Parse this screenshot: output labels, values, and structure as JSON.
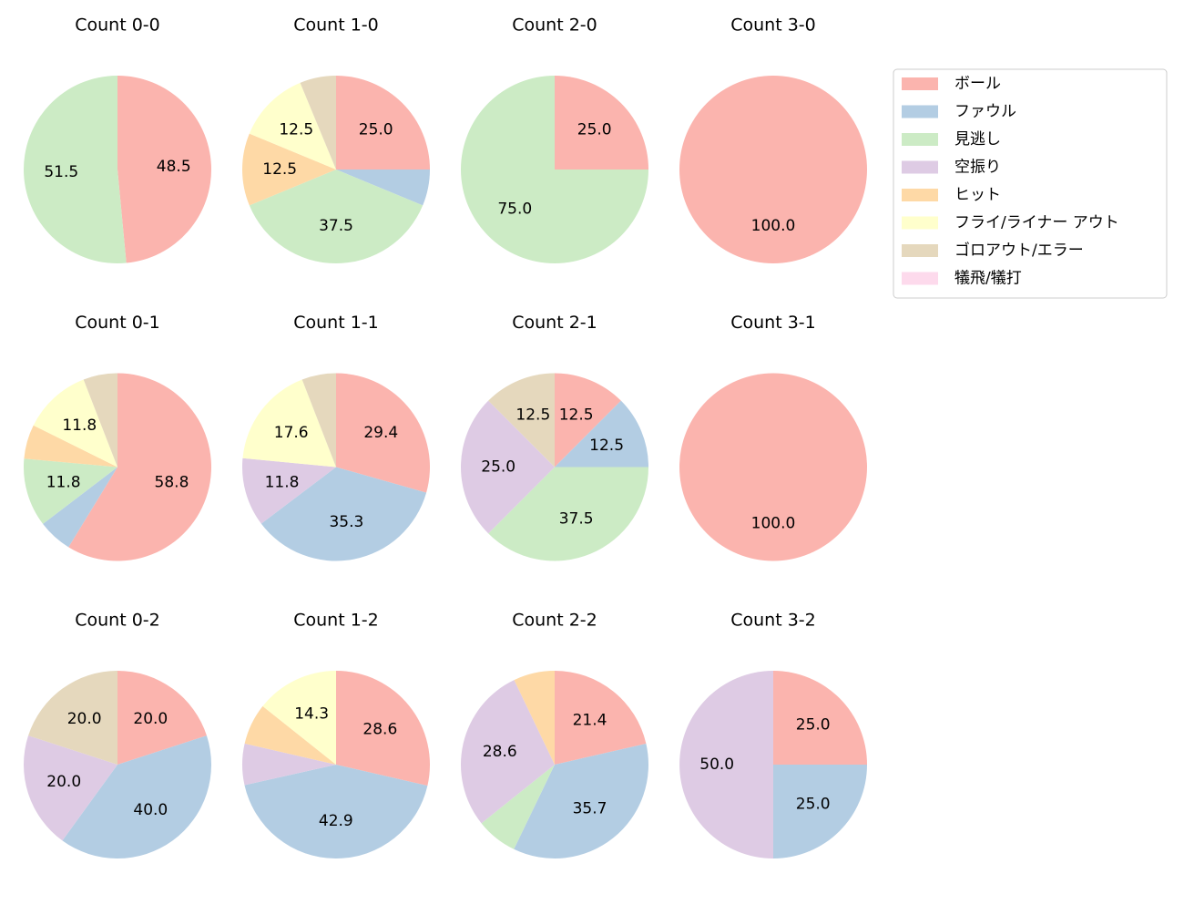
{
  "legend": {
    "categories": [
      "ボール",
      "ファウル",
      "見逃し",
      "空振り",
      "ヒット",
      "フライ/ライナー アウト",
      "ゴロアウト/エラー",
      "犠飛/犠打"
    ],
    "colors": [
      "#fbb4ae",
      "#b3cde3",
      "#ccebc5",
      "#decbe4",
      "#fed9a6",
      "#ffffcc",
      "#e5d8bd",
      "#fddaec"
    ],
    "position": "upper right"
  },
  "chart_data": [
    {
      "type": "pie",
      "title": "Count 0-0",
      "values": [
        48.5,
        0,
        51.5,
        0,
        0,
        0,
        0,
        0
      ],
      "value_labels": [
        "48.5",
        null,
        "51.5",
        null,
        null,
        null,
        null,
        null
      ]
    },
    {
      "type": "pie",
      "title": "Count 1-0",
      "values": [
        25,
        6.25,
        37.5,
        0,
        12.5,
        12.5,
        6.25,
        0
      ],
      "value_labels": [
        "25.0",
        null,
        "37.5",
        null,
        "12.5",
        "12.5",
        null,
        null
      ]
    },
    {
      "type": "pie",
      "title": "Count 2-0",
      "values": [
        25,
        0,
        75,
        0,
        0,
        0,
        0,
        0
      ],
      "value_labels": [
        "25.0",
        null,
        "75.0",
        null,
        null,
        null,
        null,
        null
      ]
    },
    {
      "type": "pie",
      "title": "Count 3-0",
      "values": [
        100,
        0,
        0,
        0,
        0,
        0,
        0,
        0
      ],
      "value_labels": [
        "100.0",
        null,
        null,
        null,
        null,
        null,
        null,
        null
      ]
    },
    {
      "type": "pie",
      "title": "Count 0-1",
      "values": [
        58.8,
        5.9,
        11.8,
        0,
        5.9,
        11.8,
        5.9,
        0
      ],
      "value_labels": [
        "58.8",
        null,
        "11.8",
        null,
        null,
        "11.8",
        null,
        null
      ]
    },
    {
      "type": "pie",
      "title": "Count 1-1",
      "values": [
        29.4,
        35.3,
        0,
        11.8,
        0,
        17.6,
        5.9,
        0
      ],
      "value_labels": [
        "29.4",
        "35.3",
        null,
        "11.8",
        null,
        "17.6",
        null,
        null
      ]
    },
    {
      "type": "pie",
      "title": "Count 2-1",
      "values": [
        12.5,
        12.5,
        37.5,
        25,
        0,
        0,
        12.5,
        0
      ],
      "value_labels": [
        "12.5",
        "12.5",
        "37.5",
        "25.0",
        null,
        null,
        "12.5",
        null
      ]
    },
    {
      "type": "pie",
      "title": "Count 3-1",
      "values": [
        100,
        0,
        0,
        0,
        0,
        0,
        0,
        0
      ],
      "value_labels": [
        "100.0",
        null,
        null,
        null,
        null,
        null,
        null,
        null
      ]
    },
    {
      "type": "pie",
      "title": "Count 0-2",
      "values": [
        20,
        40,
        0,
        20,
        0,
        0,
        20,
        0
      ],
      "value_labels": [
        "20.0",
        "40.0",
        null,
        "20.0",
        null,
        null,
        "20.0",
        null
      ]
    },
    {
      "type": "pie",
      "title": "Count 1-2",
      "values": [
        28.6,
        42.9,
        0,
        7.1,
        7.1,
        14.3,
        0,
        0
      ],
      "value_labels": [
        "28.6",
        "42.9",
        null,
        null,
        null,
        "14.3",
        null,
        null
      ]
    },
    {
      "type": "pie",
      "title": "Count 2-2",
      "values": [
        21.4,
        35.7,
        7.1,
        28.6,
        7.1,
        0,
        0,
        0
      ],
      "value_labels": [
        "21.4",
        "35.7",
        null,
        "28.6",
        null,
        null,
        null,
        null
      ]
    },
    {
      "type": "pie",
      "title": "Count 3-2",
      "values": [
        25,
        25,
        0,
        50,
        0,
        0,
        0,
        0
      ],
      "value_labels": [
        "25.0",
        "25.0",
        null,
        "50.0",
        null,
        null,
        null,
        null
      ]
    }
  ]
}
